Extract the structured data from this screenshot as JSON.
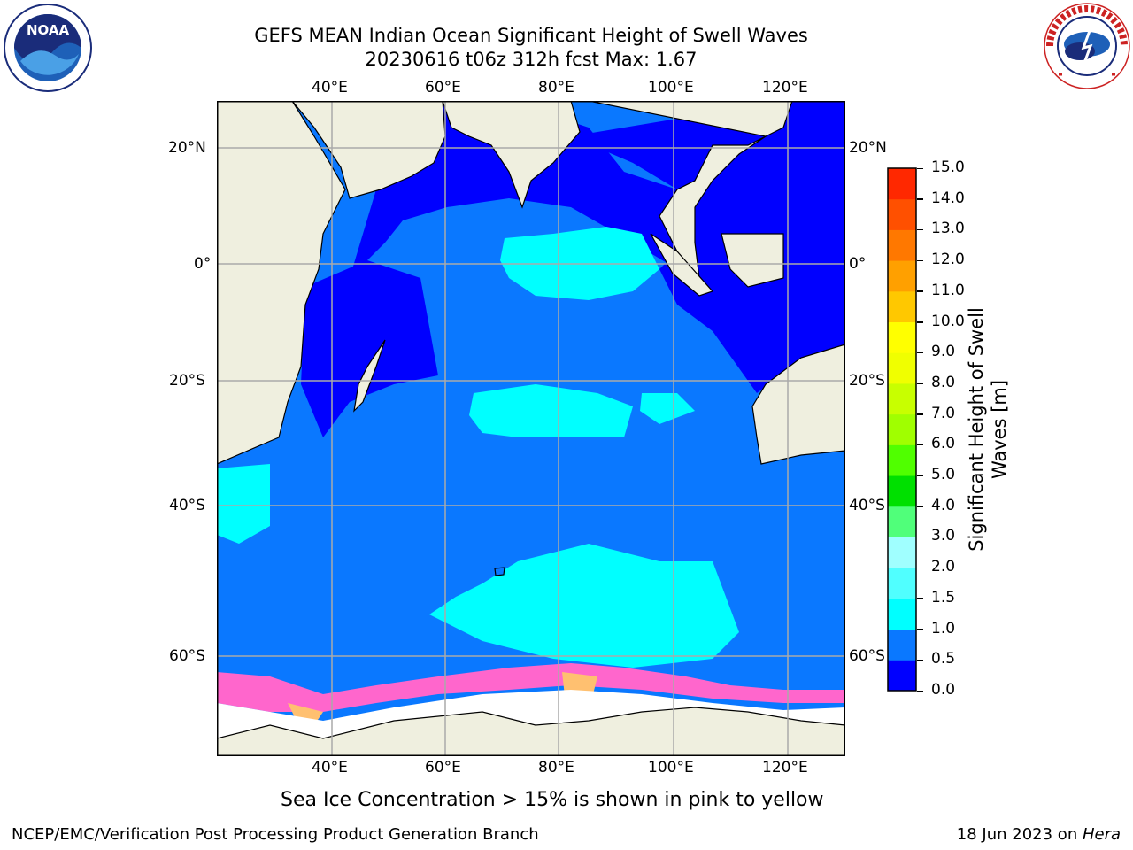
{
  "title": {
    "line1": "GEFS MEAN Indian Ocean Significant Height of Swell Waves",
    "line2": "20230616 t06z 312h fcst   Max: 1.67"
  },
  "map": {
    "lon_ticks_top": [
      "40°E",
      "60°E",
      "80°E",
      "100°E",
      "120°E"
    ],
    "lon_ticks_bottom": [
      "40°E",
      "60°E",
      "80°E",
      "100°E",
      "120°E"
    ],
    "lat_ticks_left": [
      "20°N",
      "0°",
      "20°S",
      "40°S",
      "60°S"
    ],
    "lat_ticks_right": [
      "20°N",
      "0°",
      "20°S",
      "40°S",
      "60°S"
    ]
  },
  "colorbar": {
    "label_line1": "Significant Height of Swell",
    "label_line2": "Waves [m]",
    "ticks": [
      "0.0",
      "0.5",
      "1.0",
      "1.5",
      "2.0",
      "3.0",
      "4.0",
      "5.0",
      "6.0",
      "7.0",
      "8.0",
      "9.0",
      "10.0",
      "11.0",
      "12.0",
      "13.0",
      "14.0",
      "15.0"
    ],
    "colors": [
      "#0000ff",
      "#0a78ff",
      "#00ffff",
      "#50ffff",
      "#a0ffff",
      "#50ff7a",
      "#00e000",
      "#50ff00",
      "#a0ff00",
      "#c8ff00",
      "#f0ff00",
      "#ffff00",
      "#ffc800",
      "#ffa000",
      "#ff7800",
      "#ff5000",
      "#ff2800",
      "#ff0000"
    ]
  },
  "colors": {
    "ocean_low": "#0000ff",
    "ocean_mid": "#0a78ff",
    "ocean_high": "#00ffff",
    "land": "#efefdf",
    "ice_pink": "#ff66cc",
    "ice_orange": "#ffc070"
  },
  "logos": {
    "noaa_text": "NOAA",
    "nws_text": "NATIONAL WEATHER SERVICE"
  },
  "note": "Sea Ice Concentration > 15% is shown in pink to yellow",
  "footer": {
    "left": "NCEP/EMC/Verification Post Processing Product Generation Branch",
    "right_prefix": "18 Jun 2023 on ",
    "right_machine": "Hera"
  }
}
